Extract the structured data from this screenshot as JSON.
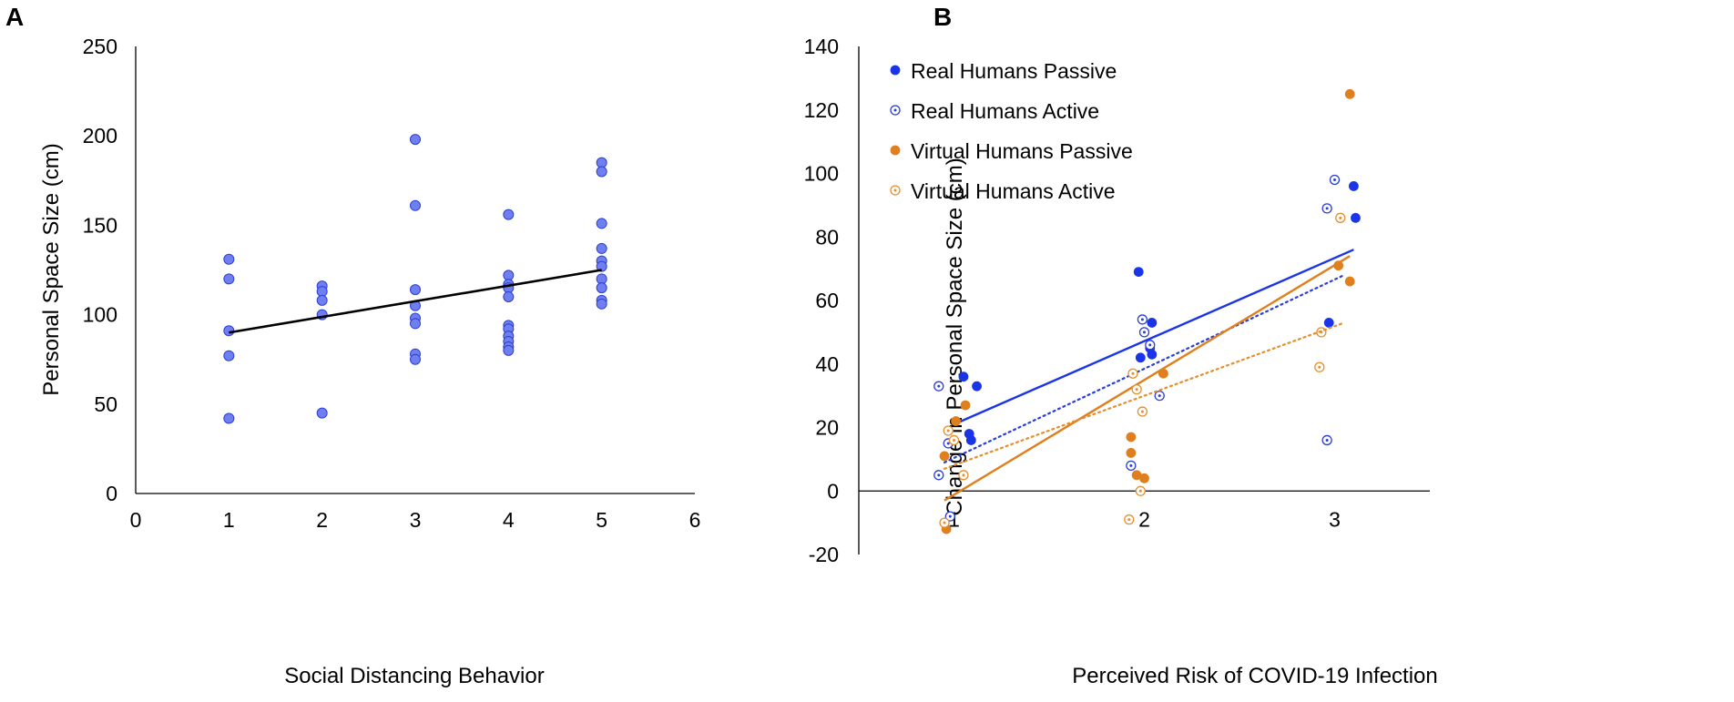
{
  "chart_data": [
    {
      "panel_label": "A",
      "type": "scatter",
      "xlabel": "Social Distancing Behavior",
      "ylabel": "Personal Space Size (cm)",
      "xlim": [
        0,
        6
      ],
      "ylim": [
        0,
        250
      ],
      "xticks": [
        "0",
        "1",
        "2",
        "3",
        "4",
        "5",
        "6"
      ],
      "yticks": [
        "0",
        "50",
        "100",
        "150",
        "200",
        "250"
      ],
      "point_color": "#6f7ff2",
      "point_edge": "#2b3fd0",
      "trend_color": "#000000",
      "trendline": {
        "x1": 1,
        "y1": 90,
        "x2": 5,
        "y2": 125
      },
      "points": [
        [
          1,
          131
        ],
        [
          1,
          120
        ],
        [
          1,
          91
        ],
        [
          1,
          77
        ],
        [
          1,
          42
        ],
        [
          2,
          116
        ],
        [
          2,
          113
        ],
        [
          2,
          108
        ],
        [
          2,
          100
        ],
        [
          2,
          45
        ],
        [
          3,
          198
        ],
        [
          3,
          161
        ],
        [
          3,
          114
        ],
        [
          3,
          105
        ],
        [
          3,
          98
        ],
        [
          3,
          95
        ],
        [
          3,
          78
        ],
        [
          3,
          75
        ],
        [
          4,
          156
        ],
        [
          4,
          122
        ],
        [
          4,
          117
        ],
        [
          4,
          115
        ],
        [
          4,
          110
        ],
        [
          4,
          94
        ],
        [
          4,
          92
        ],
        [
          4,
          88
        ],
        [
          4,
          85
        ],
        [
          4,
          82
        ],
        [
          4,
          80
        ],
        [
          5,
          185
        ],
        [
          5,
          180
        ],
        [
          5,
          151
        ],
        [
          5,
          137
        ],
        [
          5,
          130
        ],
        [
          5,
          127
        ],
        [
          5,
          120
        ],
        [
          5,
          115
        ],
        [
          5,
          108
        ],
        [
          5,
          106
        ]
      ]
    },
    {
      "panel_label": "B",
      "type": "scatter",
      "xlabel": "Perceived Risk of COVID-19 Infection",
      "ylabel": "Change in Personal Space Size (cm)",
      "xlim": [
        0.5,
        3.5
      ],
      "ylim": [
        -20,
        140
      ],
      "xticks": [
        "1",
        "2",
        "3"
      ],
      "yticks": [
        "-20",
        "0",
        "20",
        "40",
        "60",
        "80",
        "100",
        "120",
        "140"
      ],
      "legend_position": "top-left",
      "series": [
        {
          "name": "Real Humans Passive",
          "color": "#1a35e8",
          "marker": "filled",
          "trend": {
            "style": "solid",
            "x1": 1,
            "y1": 21,
            "x2": 3.1,
            "y2": 76
          },
          "points": [
            [
              1.05,
              36
            ],
            [
              1.08,
              18
            ],
            [
              1.09,
              16
            ],
            [
              1.12,
              33
            ],
            [
              1.97,
              69
            ],
            [
              1.98,
              42
            ],
            [
              2.04,
              53
            ],
            [
              2.03,
              45
            ],
            [
              2.04,
              43
            ],
            [
              2.97,
              53
            ],
            [
              3.1,
              96
            ],
            [
              3.11,
              86
            ]
          ]
        },
        {
          "name": "Real Humans Active",
          "color": "#2a3ed8",
          "marker": "open-dot",
          "trend": {
            "style": "dotted",
            "x1": 0.95,
            "y1": 9,
            "x2": 3.05,
            "y2": 68
          },
          "points": [
            [
              0.92,
              33
            ],
            [
              0.92,
              5
            ],
            [
              0.97,
              15
            ],
            [
              0.98,
              -8
            ],
            [
              1.93,
              8
            ],
            [
              1.99,
              54
            ],
            [
              2.0,
              50
            ],
            [
              2.03,
              46
            ],
            [
              2.08,
              30
            ],
            [
              2.96,
              89
            ],
            [
              3.0,
              98
            ],
            [
              2.96,
              16
            ]
          ]
        },
        {
          "name": "Virtual Humans Passive",
          "color": "#e07f1e",
          "marker": "filled",
          "trend": {
            "style": "solid",
            "x1": 0.95,
            "y1": -3,
            "x2": 3.08,
            "y2": 74
          },
          "points": [
            [
              0.95,
              11
            ],
            [
              0.96,
              -12
            ],
            [
              1.01,
              22
            ],
            [
              1.06,
              27
            ],
            [
              1.93,
              17
            ],
            [
              1.93,
              12
            ],
            [
              1.96,
              5
            ],
            [
              2.0,
              4
            ],
            [
              2.1,
              37
            ],
            [
              3.02,
              71
            ],
            [
              3.08,
              125
            ],
            [
              3.08,
              66
            ]
          ]
        },
        {
          "name": "Virtual Humans Active",
          "color": "#e58e2c",
          "marker": "open-dot",
          "trend": {
            "style": "dotted",
            "x1": 0.95,
            "y1": 7,
            "x2": 3.05,
            "y2": 53
          },
          "points": [
            [
              0.95,
              -10
            ],
            [
              0.97,
              19
            ],
            [
              1.0,
              16
            ],
            [
              1.05,
              5
            ],
            [
              1.94,
              37
            ],
            [
              1.96,
              32
            ],
            [
              1.98,
              0
            ],
            [
              1.99,
              25
            ],
            [
              1.92,
              -9
            ],
            [
              2.93,
              50
            ],
            [
              2.92,
              39
            ],
            [
              3.03,
              86
            ]
          ]
        }
      ]
    }
  ]
}
